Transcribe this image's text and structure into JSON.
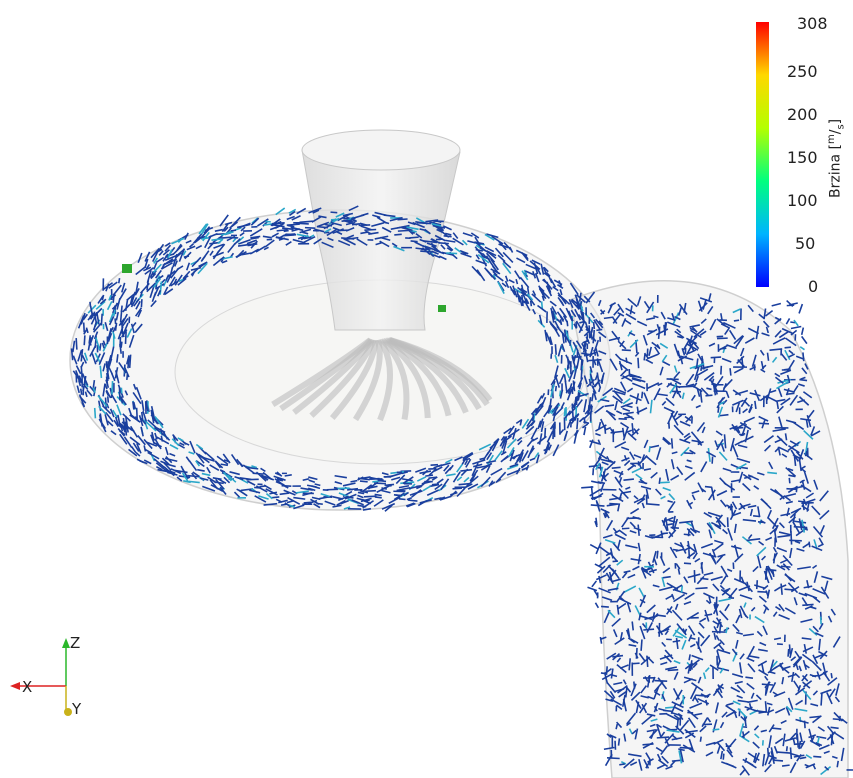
{
  "colorbar": {
    "title": "Brzina",
    "unit_numerator": "m",
    "unit_denominator": "s",
    "max_label": "308",
    "ticks": [
      "250",
      "200",
      "150",
      "100",
      "50",
      "0"
    ],
    "colors": [
      "#0000ff",
      "#00b4ff",
      "#00ff7f",
      "#b4ff00",
      "#ffd800",
      "#ff0000"
    ]
  },
  "axes": {
    "x": "X",
    "y": "Y",
    "z": "Z"
  },
  "scene": {
    "arrow_color_dominant": "#1a3f9e",
    "arrow_color_secondary": "#2aa7c9"
  }
}
